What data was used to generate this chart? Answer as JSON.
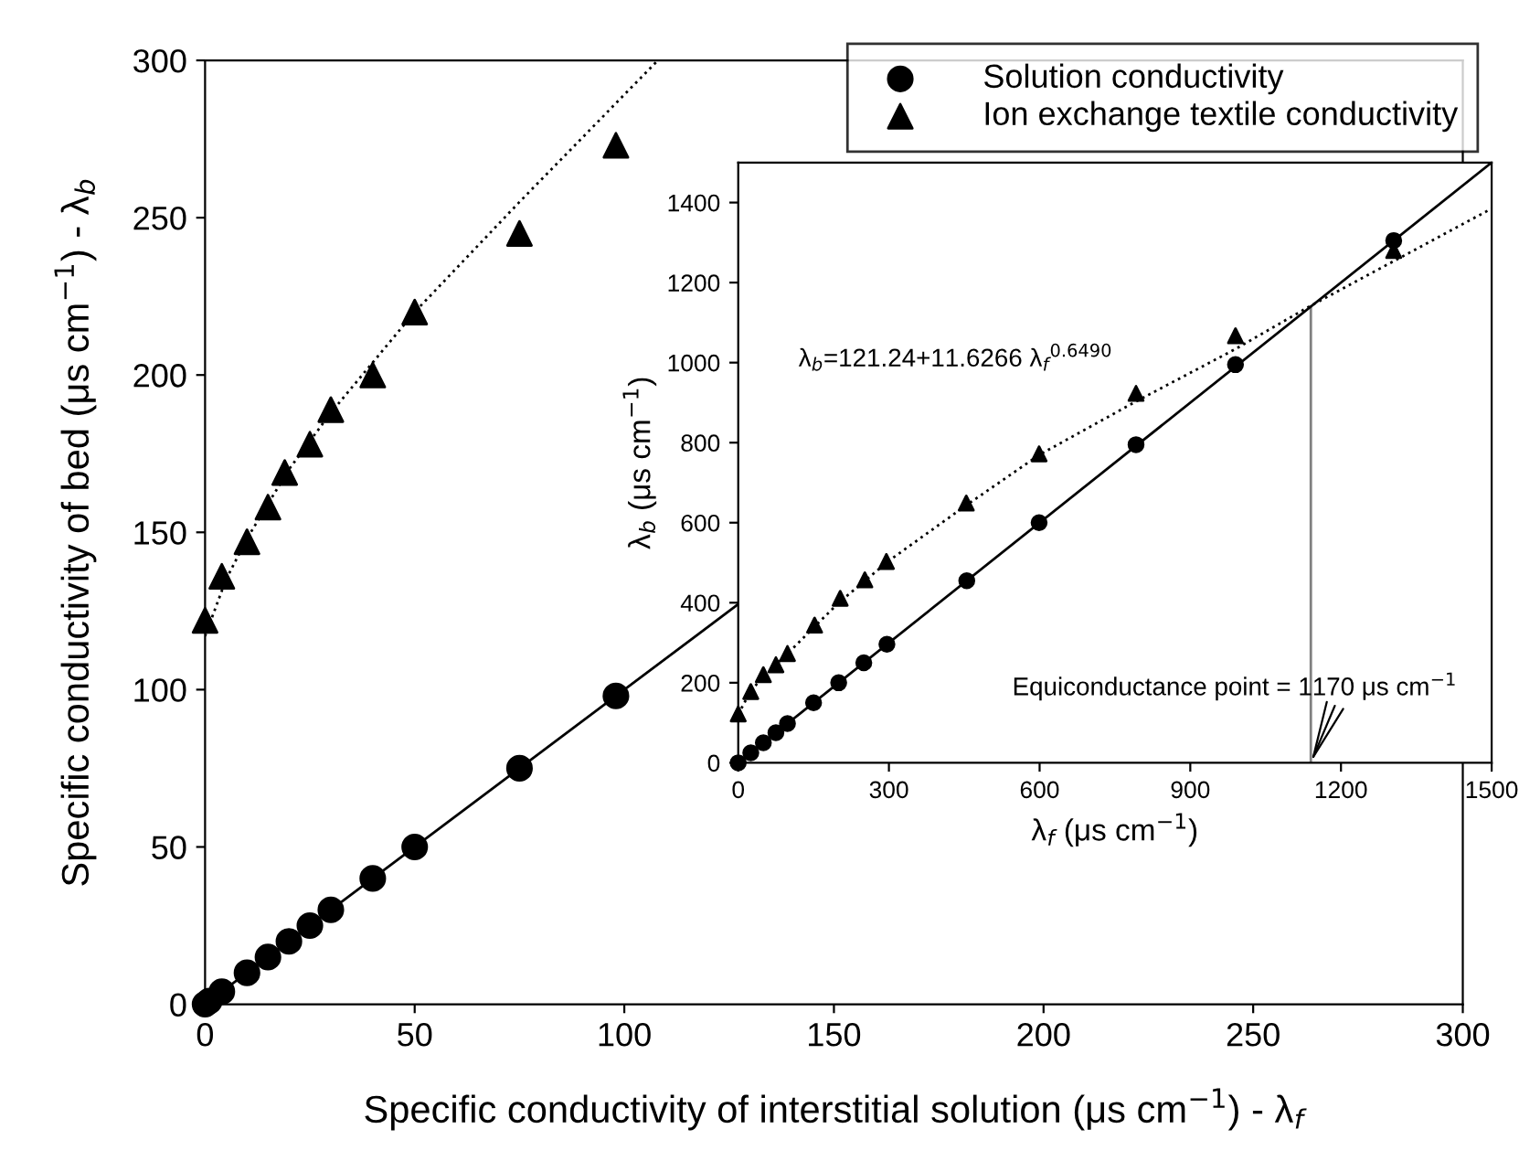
{
  "chart_data": [
    {
      "type": "scatter",
      "xlabel": "Specific conductivity of interstitial solution (μs cm$^{−1}$) - λ$_{f}$",
      "ylabel": "Specific conductivity of bed (μs cm$^{−1}$) - λ$_{b}$",
      "xlim": [
        0,
        300
      ],
      "ylim": [
        0,
        300
      ],
      "xticks": [
        0,
        50,
        100,
        150,
        200,
        250,
        300
      ],
      "yticks": [
        0,
        50,
        100,
        150,
        200,
        250,
        300
      ],
      "grid": false,
      "legend": "top right",
      "series": [
        {
          "name": "Solution conductivity",
          "marker": "circle",
          "color": "#000000",
          "x": [
            0,
            1,
            4,
            10,
            15,
            20,
            25,
            30,
            40,
            50,
            75,
            98
          ],
          "values": [
            0,
            1,
            4,
            10,
            15,
            20,
            25,
            30,
            40,
            50,
            75,
            98
          ]
        },
        {
          "name": "Ion exchange textile conductivity",
          "marker": "triangle",
          "color": "#000000",
          "x": [
            0,
            4,
            10,
            15,
            19,
            25,
            30,
            40,
            50,
            75,
            98
          ],
          "values": [
            122,
            136,
            147,
            158,
            169,
            178,
            189,
            200,
            220,
            245,
            273
          ]
        },
        {
          "type": "line",
          "line_style": "solid",
          "color": "#000000",
          "x": [
            0,
            127
          ],
          "values": [
            0,
            127
          ]
        },
        {
          "type": "line",
          "line_style": "dotted",
          "color": "#000000",
          "x": [
            0,
            5,
            10,
            20,
            30,
            50,
            75,
            108
          ],
          "values": [
            117,
            135,
            148,
            170,
            188,
            220,
            255,
            300
          ]
        }
      ]
    },
    {
      "type": "scatter",
      "xlabel": "λ$_{f}$ (μs cm$^{−1}$)",
      "ylabel": "λ$_{b}$ (μs cm$^{−1}$)",
      "xlim": [
        0,
        1500
      ],
      "ylim": [
        0,
        1500
      ],
      "xticks": [
        0,
        300,
        600,
        900,
        1200,
        1500
      ],
      "yticks": [
        0,
        200,
        400,
        600,
        800,
        1000,
        1200,
        1400
      ],
      "grid": false,
      "annotations": [
        "λ$_{b}$=121.24+11.6266 λ$_{f}$$^{0.6490}$",
        {
          "text": "Equiconductance point = 1170 μs cm$^{−1}$",
          "x": 1140,
          "y": 0
        }
      ],
      "ref_lines": [
        {
          "axis": "x",
          "value": 1140,
          "color": "#808080"
        }
      ],
      "series": [
        {
          "marker": "circle",
          "color": "#000000",
          "x": [
            0,
            25,
            50,
            75,
            98,
            150,
            200,
            250,
            296,
            455,
            599,
            792,
            990,
            1305
          ],
          "values": [
            0,
            25,
            50,
            75,
            98,
            150,
            200,
            250,
            296,
            455,
            600,
            795,
            995,
            1305
          ]
        },
        {
          "marker": "triangle",
          "color": "#000000",
          "x": [
            0,
            25,
            50,
            75,
            98,
            152,
            203,
            252,
            295,
            454,
            599,
            792,
            990,
            1305
          ],
          "values": [
            122,
            178,
            220,
            245,
            273,
            344,
            411,
            457,
            503,
            649,
            772,
            923,
            1067,
            1280
          ]
        },
        {
          "type": "line",
          "line_style": "solid",
          "color": "#000000",
          "x": [
            0,
            1500
          ],
          "values": [
            0,
            1500
          ]
        },
        {
          "type": "line",
          "line_style": "dotted",
          "color": "#000000",
          "x": [
            0,
            25,
            50,
            100,
            200,
            300,
            450,
            600,
            792,
            990,
            1138,
            1500
          ],
          "values": [
            121,
            180,
            215,
            275,
            400,
            505,
            640,
            770,
            903,
            1034,
            1141,
            1385
          ]
        }
      ]
    }
  ]
}
